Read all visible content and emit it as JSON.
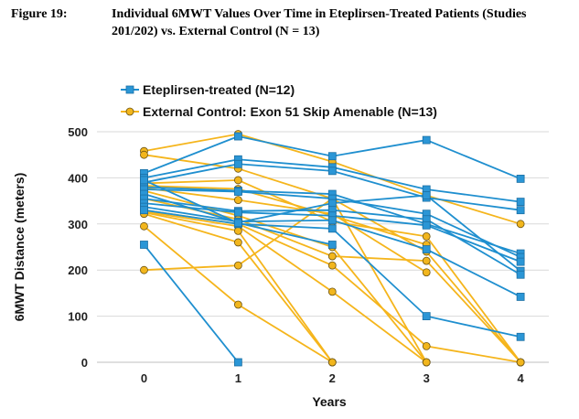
{
  "caption": {
    "label": "Figure 19:",
    "title": "Individual 6MWT Values Over Time in Eteplirsen-Treated Patients (Studies 201/202) vs. External Control (N = 13)"
  },
  "colors": {
    "treated": "#1f8fcf",
    "treated_marker": "#2b96d6",
    "control": "#f5b51c",
    "control_marker": "#f2b61d"
  },
  "chart_data": {
    "type": "line",
    "xlabel": "Years",
    "ylabel": "6MWT Distance (meters)",
    "xlim": [
      -0.5,
      4.3
    ],
    "ylim": [
      0,
      500
    ],
    "xticks": [
      0,
      1,
      2,
      3,
      4
    ],
    "yticks": [
      0,
      100,
      200,
      300,
      400,
      500
    ],
    "grid": true,
    "legend": "top-left",
    "series": [
      {
        "name": "Eteplirsen-treated (N=12)",
        "marker": "square",
        "patients": [
          [
            [
              0,
              410
            ],
            [
              1,
              490
            ],
            [
              2,
              447
            ],
            [
              3,
              482
            ],
            [
              4,
              398
            ]
          ],
          [
            [
              0,
              400
            ],
            [
              1,
              440
            ],
            [
              2,
              423
            ],
            [
              3,
              375
            ],
            [
              4,
              348
            ]
          ],
          [
            [
              0,
              390
            ],
            [
              1,
              430
            ],
            [
              2,
              415
            ],
            [
              3,
              357
            ],
            [
              4,
              330
            ]
          ],
          [
            [
              0,
              380
            ],
            [
              1,
              372
            ],
            [
              2,
              365
            ],
            [
              3,
              300
            ],
            [
              4,
              236
            ]
          ],
          [
            [
              0,
              375
            ],
            [
              1,
              370
            ],
            [
              2,
              355
            ],
            [
              3,
              322
            ],
            [
              4,
              228
            ]
          ],
          [
            [
              0,
              365
            ],
            [
              1,
              303
            ],
            [
              2,
              345
            ],
            [
              3,
              362
            ],
            [
              4,
              198
            ]
          ],
          [
            [
              0,
              355
            ],
            [
              1,
              328
            ],
            [
              2,
              330
            ],
            [
              3,
              310
            ],
            [
              4,
              190
            ]
          ],
          [
            [
              0,
              345
            ],
            [
              1,
              325
            ],
            [
              2,
              318
            ],
            [
              3,
              297
            ],
            [
              4,
              218
            ]
          ],
          [
            [
              0,
              337
            ],
            [
              1,
              305
            ],
            [
              2,
              308
            ],
            [
              3,
              245
            ],
            [
              4,
              142
            ]
          ],
          [
            [
              0,
              330
            ],
            [
              1,
              300
            ],
            [
              2,
              290
            ],
            [
              3,
              100
            ],
            [
              4,
              55
            ]
          ],
          [
            [
              0,
              395
            ],
            [
              1,
              302
            ],
            [
              2,
              255
            ]
          ],
          [
            [
              0,
              255
            ],
            [
              1,
              0
            ]
          ]
        ]
      },
      {
        "name": "External Control: Exon 51 Skip Amenable (N=13)",
        "marker": "circle",
        "patients": [
          [
            [
              0,
              458
            ],
            [
              1,
              495
            ],
            [
              2,
              435
            ],
            [
              3,
              362
            ],
            [
              4,
              300
            ]
          ],
          [
            [
              0,
              450
            ],
            [
              1,
              420
            ],
            [
              2,
              355
            ],
            [
              3,
              240
            ],
            [
              4,
              0
            ]
          ],
          [
            [
              0,
              388
            ],
            [
              1,
              395
            ],
            [
              2,
              305
            ],
            [
              3,
              273
            ],
            [
              4,
              0
            ]
          ],
          [
            [
              0,
              383
            ],
            [
              1,
              376
            ],
            [
              2,
              318
            ],
            [
              3,
              255
            ]
          ],
          [
            [
              0,
              378
            ],
            [
              1,
              352
            ],
            [
              2,
              322
            ],
            [
              3,
              195
            ]
          ],
          [
            [
              0,
              372
            ],
            [
              1,
              318
            ],
            [
              2,
              250
            ],
            [
              3,
              0
            ]
          ],
          [
            [
              0,
              355
            ],
            [
              1,
              310
            ],
            [
              2,
              230
            ],
            [
              3,
              220
            ],
            [
              4,
              0
            ]
          ],
          [
            [
              0,
              330
            ],
            [
              1,
              300
            ],
            [
              2,
              210
            ],
            [
              3,
              35
            ],
            [
              4,
              0
            ]
          ],
          [
            [
              0,
              327
            ],
            [
              1,
              295
            ],
            [
              2,
              153
            ],
            [
              3,
              0
            ]
          ],
          [
            [
              0,
              325
            ],
            [
              1,
              285
            ],
            [
              2,
              0
            ]
          ],
          [
            [
              0,
              322
            ],
            [
              1,
              260
            ],
            [
              2,
              0
            ]
          ],
          [
            [
              0,
              295
            ],
            [
              1,
              125
            ],
            [
              2,
              0
            ]
          ],
          [
            [
              0,
              200
            ],
            [
              1,
              210
            ],
            [
              2,
              355
            ],
            [
              3,
              0
            ]
          ]
        ]
      }
    ]
  }
}
